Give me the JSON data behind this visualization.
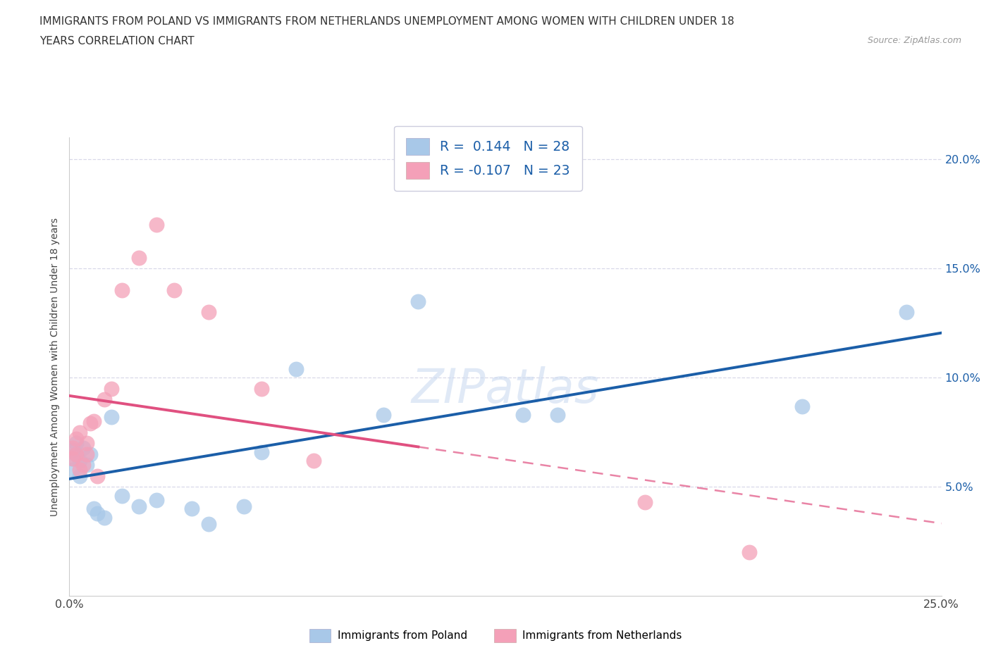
{
  "title_line1": "IMMIGRANTS FROM POLAND VS IMMIGRANTS FROM NETHERLANDS UNEMPLOYMENT AMONG WOMEN WITH CHILDREN UNDER 18",
  "title_line2": "YEARS CORRELATION CHART",
  "source": "Source: ZipAtlas.com",
  "ylabel": "Unemployment Among Women with Children Under 18 years",
  "legend1_label": "Immigrants from Poland",
  "legend2_label": "Immigrants from Netherlands",
  "r1": 0.144,
  "n1": 28,
  "r2": -0.107,
  "n2": 23,
  "color_blue": "#A8C8E8",
  "color_pink": "#F4A0B8",
  "line_blue": "#1B5EA8",
  "line_pink": "#E05080",
  "xlim": [
    0.0,
    0.25
  ],
  "ylim": [
    0.0,
    0.21
  ],
  "background_color": "#FFFFFF",
  "grid_color": "#D8D8E8",
  "poland_x": [
    0.001,
    0.001,
    0.001,
    0.002,
    0.002,
    0.003,
    0.003,
    0.004,
    0.005,
    0.006,
    0.007,
    0.008,
    0.01,
    0.012,
    0.015,
    0.02,
    0.025,
    0.035,
    0.04,
    0.05,
    0.055,
    0.065,
    0.09,
    0.1,
    0.13,
    0.14,
    0.21,
    0.24
  ],
  "poland_y": [
    0.063,
    0.067,
    0.058,
    0.065,
    0.07,
    0.062,
    0.055,
    0.068,
    0.06,
    0.065,
    0.04,
    0.038,
    0.036,
    0.082,
    0.046,
    0.041,
    0.044,
    0.04,
    0.033,
    0.041,
    0.066,
    0.104,
    0.083,
    0.135,
    0.083,
    0.083,
    0.087,
    0.13
  ],
  "netherlands_x": [
    0.001,
    0.001,
    0.002,
    0.002,
    0.003,
    0.003,
    0.004,
    0.005,
    0.005,
    0.006,
    0.007,
    0.008,
    0.01,
    0.012,
    0.015,
    0.02,
    0.025,
    0.03,
    0.04,
    0.055,
    0.07,
    0.165,
    0.195
  ],
  "netherlands_y": [
    0.063,
    0.068,
    0.065,
    0.072,
    0.058,
    0.075,
    0.06,
    0.065,
    0.07,
    0.079,
    0.08,
    0.055,
    0.09,
    0.095,
    0.14,
    0.155,
    0.17,
    0.14,
    0.13,
    0.095,
    0.062,
    0.043,
    0.02
  ]
}
